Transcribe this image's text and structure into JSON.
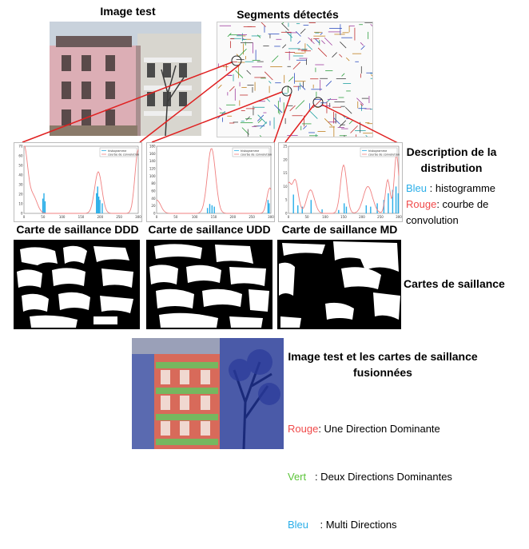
{
  "titles": {
    "image_test": "Image test",
    "segments": "Segments détectés"
  },
  "distribution": {
    "heading_line1": "Description de la",
    "heading_line2": "distribution",
    "blue_word": "Bleu",
    "blue_text": " : histogramme",
    "red_word": "Rouge",
    "red_text_line1": ": courbe de",
    "red_text_line2": "convolution"
  },
  "plots": [
    {
      "legend": [
        "histogramme",
        "courbe de convolution"
      ],
      "yticks": [
        "70",
        "60",
        "50",
        "40",
        "30",
        "20",
        "10",
        "0"
      ],
      "xticks": [
        "0",
        "50",
        "100",
        "150",
        "200",
        "250",
        "300"
      ]
    },
    {
      "legend": [
        "histogramme",
        "courbe de convolution"
      ],
      "yticks": [
        "180",
        "160",
        "140",
        "120",
        "100",
        "80",
        "60",
        "40",
        "20",
        "0"
      ],
      "xticks": [
        "0",
        "50",
        "100",
        "150",
        "200",
        "250",
        "300"
      ]
    },
    {
      "legend": [
        "histogramme",
        "courbe de convolution"
      ],
      "yticks": [
        "25",
        "20",
        "15",
        "10",
        "5",
        "0"
      ],
      "xticks": [
        "0",
        "50",
        "100",
        "150",
        "200",
        "250",
        "300"
      ]
    }
  ],
  "saliency": {
    "ddd": "Carte de saillance DDD",
    "udd": "Carte de saillance UDD",
    "md": "Carte de saillance MD",
    "label": "Cartes de saillance"
  },
  "fused": {
    "heading_line1": "Image test et les cartes de saillance",
    "heading_line2": "fusionnées",
    "red_word": "Rouge",
    "red_text": ": Une Direction Dominante",
    "green_word": "Vert",
    "green_text": "   : Deux Directions Dominantes",
    "blue_word": "Bleu",
    "blue_text": "    : Multi Directions"
  },
  "colors": {
    "red": "#f04a4a",
    "green": "#5cc43a",
    "blue": "#2aaee8",
    "histogram": "#2aaee8",
    "convolution": "#f08080"
  }
}
